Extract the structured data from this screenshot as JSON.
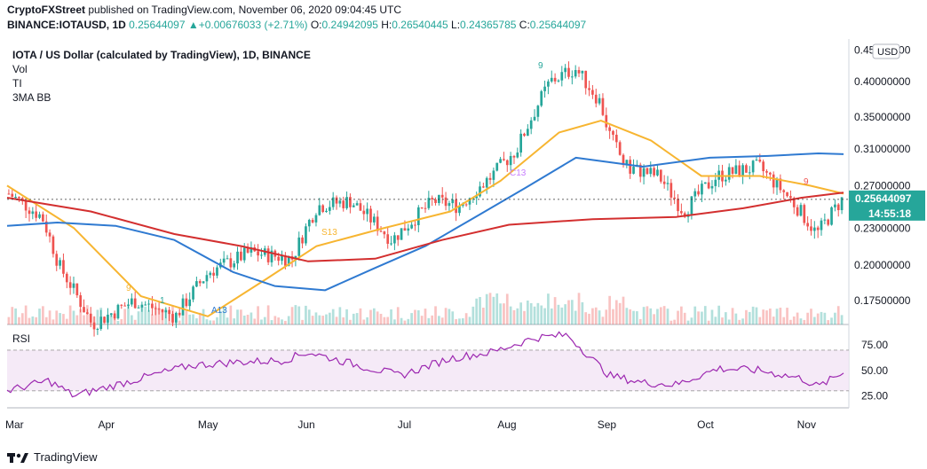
{
  "header": {
    "publisher": "CryptoFXStreet",
    "published_text": "published on TradingView.com, November 06, 2020 09:04:45 UTC",
    "symbol": "BINANCE:IOTAUSD, 1D",
    "change": "0.25644097 ▲+0.00676033 (+2.71%)",
    "o_label": "O:",
    "o_value": "0.24942095",
    "h_label": "H:",
    "h_value": "0.26540445",
    "l_label": "L:",
    "l_value": "0.24365785",
    "c_label": "C:",
    "c_value": "0.25644097"
  },
  "legend": {
    "title": "IOTA / US Dollar (calculated by TradingView), 1D, BINANCE",
    "items": [
      "Vol",
      "TI",
      "3MA BB"
    ]
  },
  "price_axis": {
    "currency": "USD",
    "current_price": "0.25644097",
    "countdown": "14:55:18",
    "ticks": [
      "0.45000000",
      "0.40000000",
      "0.35000000",
      "0.31000000",
      "0.27000000",
      "0.23000000",
      "0.20000000",
      "0.17500000"
    ]
  },
  "rsi": {
    "label": "RSI",
    "ticks": [
      "75.00",
      "50.00",
      "25.00"
    ]
  },
  "time_axis": [
    "Mar",
    "Apr",
    "May",
    "Jun",
    "Jul",
    "Aug",
    "Sep",
    "Oct",
    "Nov"
  ],
  "annotations": [
    "9",
    "1",
    "A13",
    "S13",
    "C13",
    "9",
    "9"
  ],
  "colors": {
    "up": "#26a69a",
    "down": "#ef5350",
    "ma_short": "#f7b531",
    "ma_mid": "#2f7ad1",
    "ma_long": "#d32f2f",
    "rsi_line": "#9c27b0",
    "rsi_band": "#f3e5f5"
  },
  "footer": {
    "brand": "TradingView"
  },
  "chart_data": {
    "type": "candlestick",
    "title": "IOTA / US Dollar (calculated by TradingView), 1D, BINANCE",
    "timeframe": "1D",
    "x_range": [
      "2020-03",
      "2020-11-06"
    ],
    "ylim": [
      0.16,
      0.46
    ],
    "y_scale": "log",
    "last_close": 0.25644097,
    "price_anchor_points": [
      {
        "t": 0,
        "price": 0.262
      },
      {
        "t": 0.04,
        "price": 0.24
      },
      {
        "t": 0.06,
        "price": 0.2
      },
      {
        "t": 0.1,
        "price": 0.16
      },
      {
        "t": 0.15,
        "price": 0.175
      },
      {
        "t": 0.2,
        "price": 0.165
      },
      {
        "t": 0.24,
        "price": 0.195
      },
      {
        "t": 0.29,
        "price": 0.21
      },
      {
        "t": 0.34,
        "price": 0.205
      },
      {
        "t": 0.37,
        "price": 0.25
      },
      {
        "t": 0.41,
        "price": 0.255
      },
      {
        "t": 0.46,
        "price": 0.22
      },
      {
        "t": 0.51,
        "price": 0.255
      },
      {
        "t": 0.54,
        "price": 0.25
      },
      {
        "t": 0.58,
        "price": 0.28
      },
      {
        "t": 0.61,
        "price": 0.31
      },
      {
        "t": 0.65,
        "price": 0.4
      },
      {
        "t": 0.68,
        "price": 0.42
      },
      {
        "t": 0.71,
        "price": 0.37
      },
      {
        "t": 0.72,
        "price": 0.33
      },
      {
        "t": 0.74,
        "price": 0.29
      },
      {
        "t": 0.78,
        "price": 0.28
      },
      {
        "t": 0.81,
        "price": 0.245
      },
      {
        "t": 0.85,
        "price": 0.28
      },
      {
        "t": 0.9,
        "price": 0.29
      },
      {
        "t": 0.94,
        "price": 0.255
      },
      {
        "t": 0.97,
        "price": 0.225
      },
      {
        "t": 1.0,
        "price": 0.256
      }
    ],
    "moving_averages": [
      {
        "name": "short",
        "points": [
          [
            0,
            0.27
          ],
          [
            0.08,
            0.23
          ],
          [
            0.16,
            0.178
          ],
          [
            0.24,
            0.165
          ],
          [
            0.31,
            0.19
          ],
          [
            0.37,
            0.215
          ],
          [
            0.45,
            0.23
          ],
          [
            0.53,
            0.245
          ],
          [
            0.59,
            0.275
          ],
          [
            0.66,
            0.33
          ],
          [
            0.71,
            0.345
          ],
          [
            0.77,
            0.32
          ],
          [
            0.83,
            0.28
          ],
          [
            0.9,
            0.28
          ],
          [
            0.96,
            0.27
          ],
          [
            1.0,
            0.262
          ]
        ]
      },
      {
        "name": "mid",
        "points": [
          [
            0,
            0.232
          ],
          [
            0.06,
            0.235
          ],
          [
            0.13,
            0.232
          ],
          [
            0.2,
            0.22
          ],
          [
            0.27,
            0.195
          ],
          [
            0.32,
            0.185
          ],
          [
            0.38,
            0.182
          ],
          [
            0.44,
            0.198
          ],
          [
            0.5,
            0.215
          ],
          [
            0.56,
            0.24
          ],
          [
            0.62,
            0.268
          ],
          [
            0.68,
            0.3
          ],
          [
            0.76,
            0.29
          ],
          [
            0.84,
            0.3
          ],
          [
            0.91,
            0.302
          ],
          [
            0.97,
            0.305
          ],
          [
            1.0,
            0.304
          ]
        ]
      },
      {
        "name": "long",
        "points": [
          [
            0,
            0.258
          ],
          [
            0.1,
            0.245
          ],
          [
            0.2,
            0.225
          ],
          [
            0.28,
            0.215
          ],
          [
            0.36,
            0.203
          ],
          [
            0.44,
            0.205
          ],
          [
            0.52,
            0.22
          ],
          [
            0.6,
            0.233
          ],
          [
            0.7,
            0.238
          ],
          [
            0.8,
            0.24
          ],
          [
            0.88,
            0.248
          ],
          [
            0.95,
            0.258
          ],
          [
            1.0,
            0.263
          ]
        ]
      }
    ],
    "rsi_anchor_points": [
      {
        "t": 0,
        "v": 30
      },
      {
        "t": 0.05,
        "v": 40
      },
      {
        "t": 0.08,
        "v": 25
      },
      {
        "t": 0.14,
        "v": 38
      },
      {
        "t": 0.22,
        "v": 55
      },
      {
        "t": 0.27,
        "v": 58
      },
      {
        "t": 0.33,
        "v": 60
      },
      {
        "t": 0.36,
        "v": 68
      },
      {
        "t": 0.42,
        "v": 55
      },
      {
        "t": 0.47,
        "v": 45
      },
      {
        "t": 0.53,
        "v": 62
      },
      {
        "t": 0.58,
        "v": 68
      },
      {
        "t": 0.63,
        "v": 82
      },
      {
        "t": 0.67,
        "v": 85
      },
      {
        "t": 0.72,
        "v": 45
      },
      {
        "t": 0.76,
        "v": 38
      },
      {
        "t": 0.8,
        "v": 36
      },
      {
        "t": 0.85,
        "v": 52
      },
      {
        "t": 0.9,
        "v": 50
      },
      {
        "t": 0.95,
        "v": 42
      },
      {
        "t": 0.97,
        "v": 34
      },
      {
        "t": 1.0,
        "v": 48
      }
    ],
    "rsi_ylim": [
      15,
      90
    ],
    "rsi_bands": [
      30,
      70
    ]
  }
}
